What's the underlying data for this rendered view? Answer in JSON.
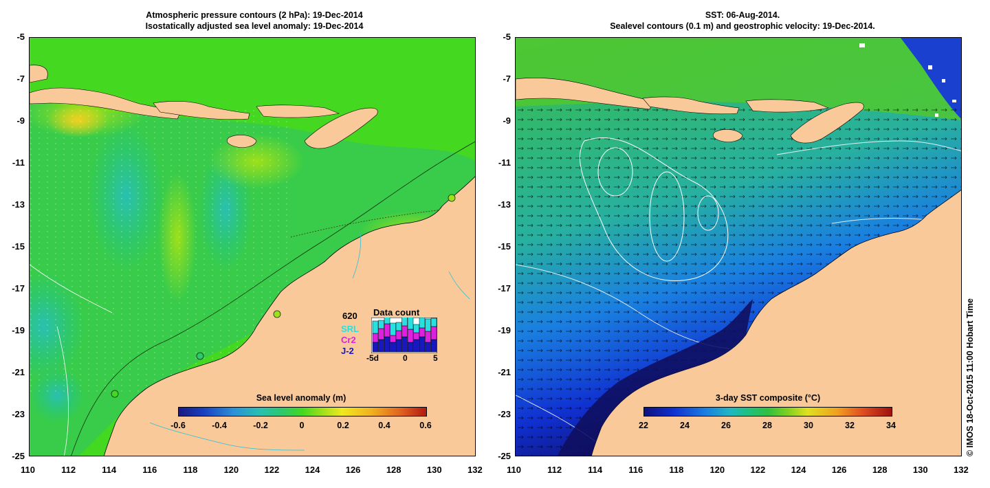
{
  "left_panel": {
    "title_line1": "Atmospheric pressure contours (2 hPa): 19-Dec-2014",
    "title_line2": "Isostatically adjusted sea level anomaly: 19-Dec-2014",
    "colorbar": {
      "label": "Sea level anomaly (m)",
      "ticks": [
        "-0.6",
        "-0.4",
        "-0.2",
        "0",
        "0.2",
        "0.4",
        "0.6"
      ],
      "range": [
        -0.6,
        0.6
      ]
    },
    "data_count": {
      "title": "Data count",
      "total": "620",
      "satellites": [
        "SRL",
        "Cr2",
        "J-2"
      ],
      "axis_ticks": [
        "-5d",
        "0",
        "5"
      ]
    }
  },
  "right_panel": {
    "title_line1": "SST: 06-Aug-2014.",
    "title_line2": "Sealevel contours (0.1 m) and geostrophic velocity: 19-Dec-2014.",
    "colorbar": {
      "label": "3-day SST composite (°C)",
      "ticks": [
        "22",
        "24",
        "26",
        "28",
        "30",
        "32",
        "34"
      ],
      "range": [
        22,
        34
      ]
    }
  },
  "axes": {
    "x_ticks": [
      "110",
      "112",
      "114",
      "116",
      "118",
      "120",
      "122",
      "124",
      "126",
      "128",
      "130",
      "132"
    ],
    "y_ticks": [
      "-5",
      "-7",
      "-9",
      "-11",
      "-13",
      "-15",
      "-17",
      "-19",
      "-21",
      "-23",
      "-25"
    ],
    "lon_range": [
      110,
      132
    ],
    "lat_range": [
      -25,
      -5
    ]
  },
  "credit": "© IMOS 18-Oct-2015 11:00 Hobart Time",
  "colors": {
    "land": "#f9c99a",
    "sla_colormap": [
      "#1a1a80",
      "#1a3fc0",
      "#2a8fd8",
      "#29c0b0",
      "#2ec86a",
      "#44d820",
      "#9ee01a",
      "#f0e820",
      "#f0b020",
      "#e06020",
      "#b01a10"
    ],
    "sst_colormap": [
      "#101080",
      "#1030d0",
      "#1a80e0",
      "#20b8c0",
      "#20c080",
      "#30c040",
      "#80d020",
      "#e0e020",
      "#f0a020",
      "#e05020",
      "#a01010"
    ]
  }
}
